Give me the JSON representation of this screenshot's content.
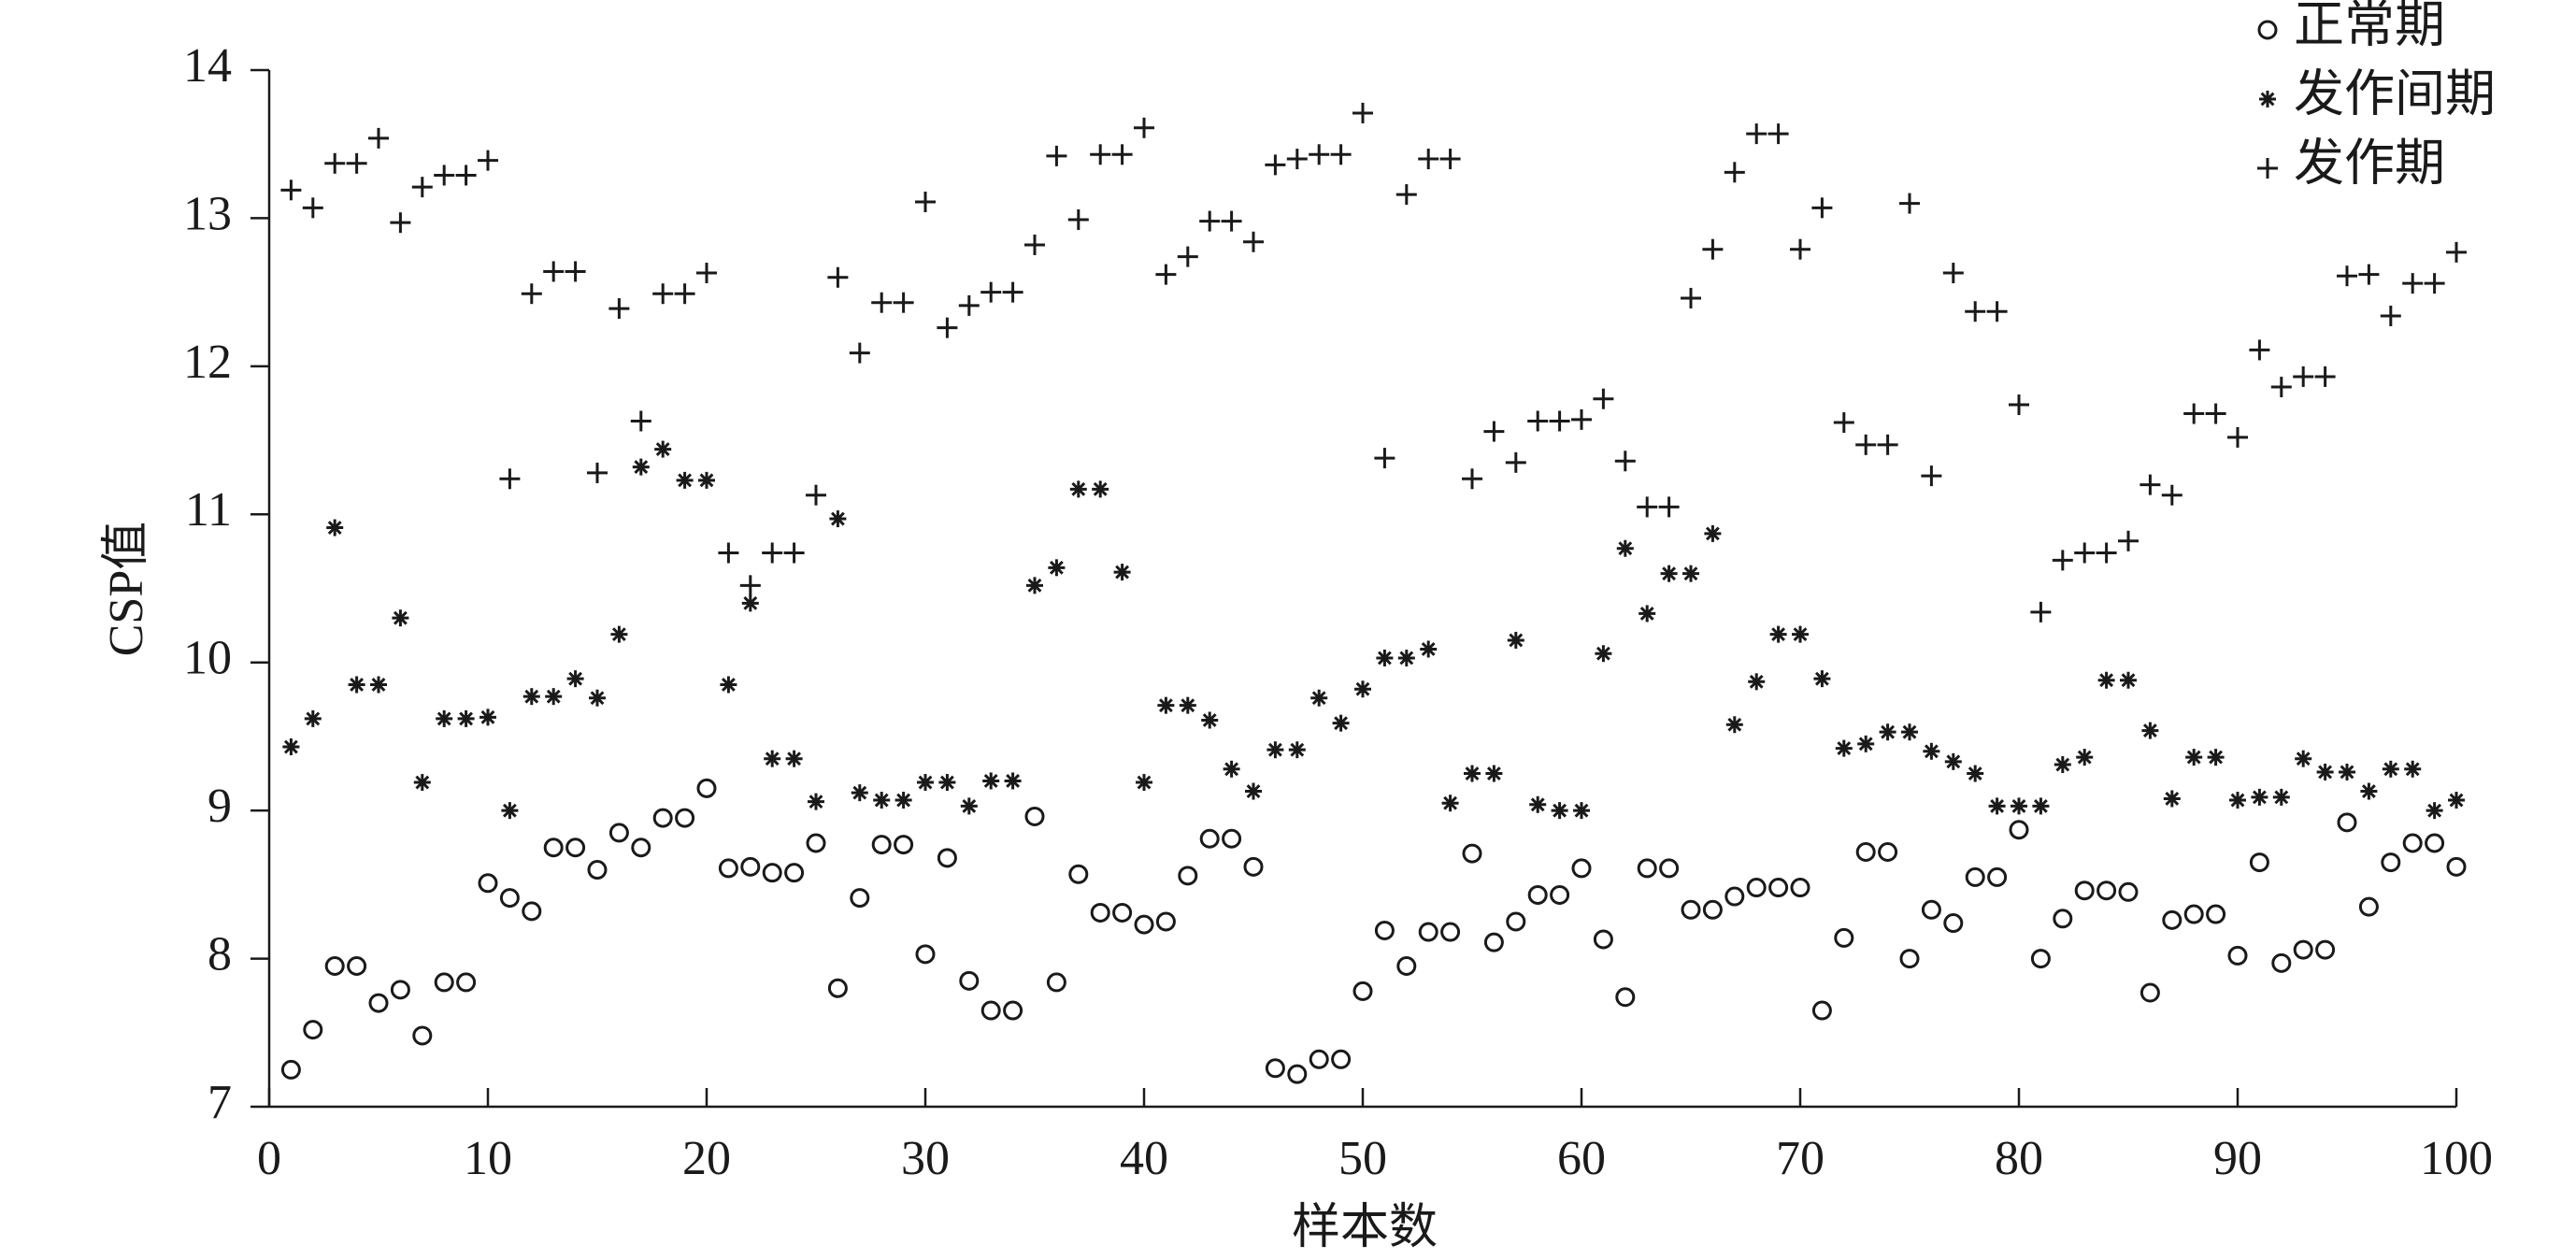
{
  "chart_data": {
    "type": "scatter",
    "xlabel": "样本数",
    "ylabel": "CSP值",
    "x": [
      1,
      2,
      3,
      4,
      5,
      6,
      7,
      8,
      9,
      10,
      11,
      12,
      13,
      14,
      15,
      16,
      17,
      18,
      19,
      20,
      21,
      22,
      23,
      24,
      25,
      26,
      27,
      28,
      29,
      30,
      31,
      32,
      33,
      34,
      35,
      36,
      37,
      38,
      39,
      40,
      41,
      42,
      43,
      44,
      45,
      46,
      47,
      48,
      49,
      50,
      51,
      52,
      53,
      54,
      55,
      56,
      57,
      58,
      59,
      60,
      61,
      62,
      63,
      64,
      65,
      66,
      67,
      68,
      69,
      70,
      71,
      72,
      73,
      74,
      75,
      76,
      77,
      78,
      79,
      80,
      81,
      82,
      83,
      84,
      85,
      86,
      87,
      88,
      89,
      90,
      91,
      92,
      93,
      94,
      95,
      96,
      97,
      98,
      99,
      100
    ],
    "series": [
      {
        "name": "正常期",
        "color": "#1a1a1a",
        "marker": "circle",
        "values": [
          7.25,
          7.52,
          7.95,
          7.95,
          7.7,
          7.79,
          7.48,
          7.84,
          7.84,
          8.51,
          8.41,
          8.32,
          8.75,
          8.75,
          8.6,
          8.85,
          8.75,
          8.95,
          8.95,
          9.15,
          8.61,
          8.62,
          8.58,
          8.58,
          8.78,
          7.8,
          8.41,
          8.77,
          8.77,
          8.03,
          8.68,
          7.85,
          7.65,
          7.65,
          8.96,
          7.84,
          8.57,
          8.31,
          8.31,
          8.23,
          8.25,
          8.56,
          8.81,
          8.81,
          8.62,
          7.26,
          7.22,
          7.32,
          7.32,
          7.78,
          8.19,
          7.95,
          8.18,
          8.18,
          8.71,
          8.11,
          8.25,
          8.43,
          8.43,
          8.61,
          8.13,
          7.74,
          8.61,
          8.61,
          8.33,
          8.33,
          8.42,
          8.48,
          8.48,
          8.48,
          7.65,
          8.14,
          8.72,
          8.72,
          8.0,
          8.33,
          8.24,
          8.55,
          8.55,
          8.87,
          8.0,
          8.27,
          8.46,
          8.46,
          8.45,
          7.77,
          8.26,
          8.3,
          8.3,
          8.02,
          8.65,
          7.97,
          8.06,
          8.06,
          8.92,
          8.35,
          8.65,
          8.78,
          8.78,
          8.62
        ]
      },
      {
        "name": "发作间期",
        "color": "#1a1a1a",
        "marker": "asterisk",
        "values": [
          9.43,
          9.62,
          10.91,
          9.85,
          9.85,
          10.3,
          9.19,
          9.62,
          9.62,
          9.63,
          9.0,
          9.77,
          9.77,
          9.89,
          9.76,
          10.19,
          11.32,
          11.44,
          11.23,
          11.23,
          9.85,
          10.4,
          9.35,
          9.35,
          9.06,
          10.97,
          9.12,
          9.07,
          9.07,
          9.19,
          9.19,
          9.03,
          9.2,
          9.2,
          10.52,
          10.64,
          11.17,
          11.17,
          10.61,
          9.19,
          9.71,
          9.71,
          9.61,
          9.28,
          9.13,
          9.41,
          9.41,
          9.76,
          9.59,
          9.82,
          10.03,
          10.03,
          10.09,
          9.05,
          9.25,
          9.25,
          10.15,
          9.04,
          9.0,
          9.0,
          10.06,
          10.77,
          10.33,
          10.6,
          10.6,
          10.87,
          9.58,
          9.87,
          10.19,
          10.19,
          9.89,
          9.42,
          9.45,
          9.53,
          9.53,
          9.4,
          9.33,
          9.25,
          9.03,
          9.03,
          9.03,
          9.31,
          9.36,
          9.88,
          9.88,
          9.54,
          9.08,
          9.36,
          9.36,
          9.07,
          9.09,
          9.09,
          9.35,
          9.26,
          9.26,
          9.13,
          9.28,
          9.28,
          9.0,
          9.07
        ]
      },
      {
        "name": "发作期",
        "color": "#1a1a1a",
        "marker": "plus",
        "values": [
          13.19,
          13.07,
          13.37,
          13.37,
          13.54,
          12.97,
          13.21,
          13.29,
          13.29,
          13.39,
          11.24,
          12.49,
          12.64,
          12.64,
          11.28,
          12.39,
          11.63,
          12.49,
          12.49,
          12.63,
          10.74,
          10.52,
          10.74,
          10.74,
          11.13,
          12.6,
          12.09,
          12.43,
          12.43,
          13.11,
          12.26,
          12.41,
          12.5,
          12.5,
          12.82,
          13.42,
          12.99,
          13.43,
          13.43,
          13.61,
          12.62,
          12.74,
          12.98,
          12.98,
          12.84,
          13.36,
          13.4,
          13.43,
          13.43,
          13.71,
          11.38,
          13.16,
          13.4,
          13.4,
          11.24,
          11.56,
          11.35,
          11.63,
          11.63,
          11.64,
          11.78,
          11.36,
          11.05,
          11.05,
          12.46,
          12.79,
          13.31,
          13.57,
          13.57,
          12.79,
          13.07,
          11.62,
          11.47,
          11.47,
          13.1,
          11.26,
          12.63,
          12.37,
          12.37,
          11.74,
          10.34,
          10.69,
          10.74,
          10.74,
          10.82,
          11.2,
          11.13,
          11.68,
          11.68,
          11.52,
          12.11,
          11.86,
          11.93,
          11.93,
          12.61,
          12.62,
          12.34,
          12.56,
          12.56,
          12.77
        ]
      }
    ],
    "xlim": [
      0,
      100
    ],
    "xticks": [
      0,
      10,
      20,
      30,
      40,
      50,
      60,
      70,
      80,
      90,
      100
    ],
    "ylim": [
      7,
      14
    ],
    "yticks": [
      7,
      8,
      9,
      10,
      11,
      12,
      13,
      14
    ],
    "grid": false,
    "legend": "upper right"
  }
}
